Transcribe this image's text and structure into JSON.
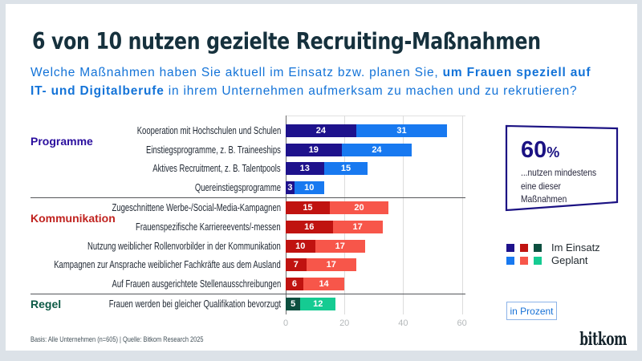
{
  "title": "6 von 10 nutzen gezielte Recruiting-Maßnahmen",
  "subtitle": {
    "lines": [
      [
        {
          "text": "Welche Maßnahmen haben Sie aktuell im Einsatz bzw. planen Sie, ",
          "bold": false
        },
        {
          "text": "um Frauen speziell auf",
          "bold": true
        }
      ],
      [
        {
          "text": "IT- und Digitalberufe",
          "bold": true
        },
        {
          "text": " in ihrem Unternehmen aufmerksam zu machen und zu rekrutieren?",
          "bold": false
        }
      ]
    ]
  },
  "chart_data": {
    "type": "bar",
    "orientation": "horizontal",
    "stacked": true,
    "xlim": [
      0,
      60
    ],
    "xticks": [
      0,
      20,
      40,
      60
    ],
    "series_names": [
      "Im Einsatz",
      "Geplant"
    ],
    "groups": [
      {
        "name": "Programme",
        "label_color": "#2a0e9e",
        "dark": "#1e128c",
        "light": "#1879f0",
        "rows": [
          {
            "label": "Kooperation mit Hochschulen und Schulen",
            "im_einsatz": 24,
            "geplant": 31
          },
          {
            "label": "Einstiegsprogramme, z. B. Traineeships",
            "im_einsatz": 19,
            "geplant": 24
          },
          {
            "label": "Aktives Recruitment, z. B. Talentpools",
            "im_einsatz": 13,
            "geplant": 15
          },
          {
            "label": "Quereinstiegsprogramme",
            "im_einsatz": 3,
            "geplant": 10
          }
        ]
      },
      {
        "name": "Kommunikation",
        "label_color": "#c0231f",
        "dark": "#c01310",
        "light": "#f7564a",
        "rows": [
          {
            "label": "Zugeschnittene Werbe-/Social-Media-Kampagnen",
            "im_einsatz": 15,
            "geplant": 20
          },
          {
            "label": "Frauenspezifische Karriereevents/-messen",
            "im_einsatz": 16,
            "geplant": 17
          },
          {
            "label": "Nutzung weiblicher Rollenvorbilder in der Kommunikation",
            "im_einsatz": 10,
            "geplant": 17
          },
          {
            "label": "Kampagnen zur Ansprache weiblicher Fachkräfte aus dem Ausland",
            "im_einsatz": 7,
            "geplant": 17
          },
          {
            "label": "Auf Frauen ausgerichtete Stellenausschreibungen",
            "im_einsatz": 6,
            "geplant": 14
          }
        ]
      },
      {
        "name": "Regel",
        "label_color": "#0d5a46",
        "dark": "#0d4f3f",
        "light": "#15cb92",
        "rows": [
          {
            "label": "Frauen werden bei gleicher Qualifikation bevorzugt",
            "im_einsatz": 5,
            "geplant": 12
          }
        ]
      }
    ],
    "legend": [
      {
        "label": "Im Einsatz",
        "colors": [
          "#1e128c",
          "#c01310",
          "#0d4f3f"
        ]
      },
      {
        "label": "Geplant",
        "colors": [
          "#1879f0",
          "#f7564a",
          "#15cb92"
        ]
      }
    ],
    "callout": {
      "number": "60",
      "percent_sign": "%",
      "description": "...nutzen mindestens eine dieser Maßnahmen"
    },
    "unit_label": "in Prozent"
  },
  "footer": {
    "basis": "Basis: Alle Unternehmen (n=605) | Quelle: Bitkom Research 2025",
    "logo": "bitkom"
  }
}
